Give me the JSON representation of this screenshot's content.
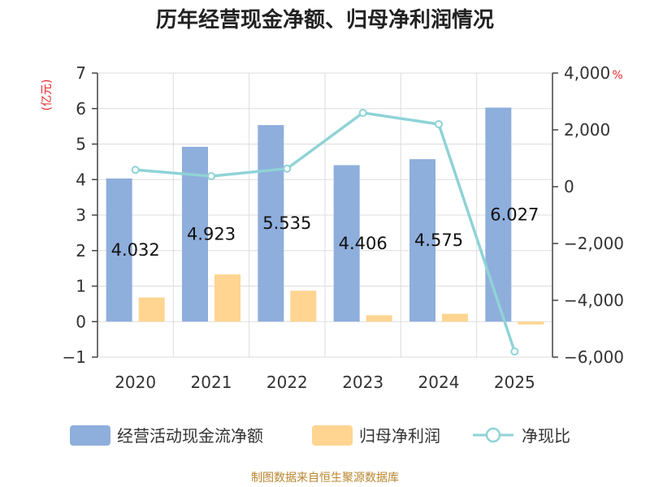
{
  "chart_data": {
    "type": "bar",
    "title": "历年经营现金净额、归母净利润情况",
    "categories": [
      "2020",
      "2021",
      "2022",
      "2023",
      "2024",
      "2025"
    ],
    "series": [
      {
        "name": "经营活动现金流净额",
        "type": "bar",
        "axis": "left",
        "color": "#8eaedc",
        "values": [
          4.032,
          4.923,
          5.535,
          4.406,
          4.575,
          6.027
        ]
      },
      {
        "name": "归母净利润",
        "type": "bar",
        "axis": "left",
        "color": "#ffd591",
        "values": [
          0.68,
          1.33,
          0.87,
          0.18,
          0.22,
          -0.08
        ]
      },
      {
        "name": "净现比",
        "type": "line",
        "axis": "right",
        "color": "#8fd3d6",
        "values": [
          592,
          370,
          636,
          2600,
          2200,
          -5800
        ]
      }
    ],
    "data_labels": [
      "4.032",
      "4.923",
      "5.535",
      "4.406",
      "4.575",
      "6.027"
    ],
    "y_left": {
      "unit": "(亿元)",
      "range": [
        -1,
        7
      ],
      "ticks": [
        "7",
        "6",
        "5",
        "4",
        "3",
        "2",
        "1",
        "0",
        "−1"
      ]
    },
    "y_right": {
      "unit": "%",
      "range": [
        -6000,
        4000
      ],
      "ticks": [
        "4,000",
        "2,000",
        "0",
        "−2,000",
        "−4,000",
        "−6,000"
      ]
    },
    "grid": true,
    "legend_position": "bottom",
    "source": "制图数据来自恒生聚源数据库"
  }
}
